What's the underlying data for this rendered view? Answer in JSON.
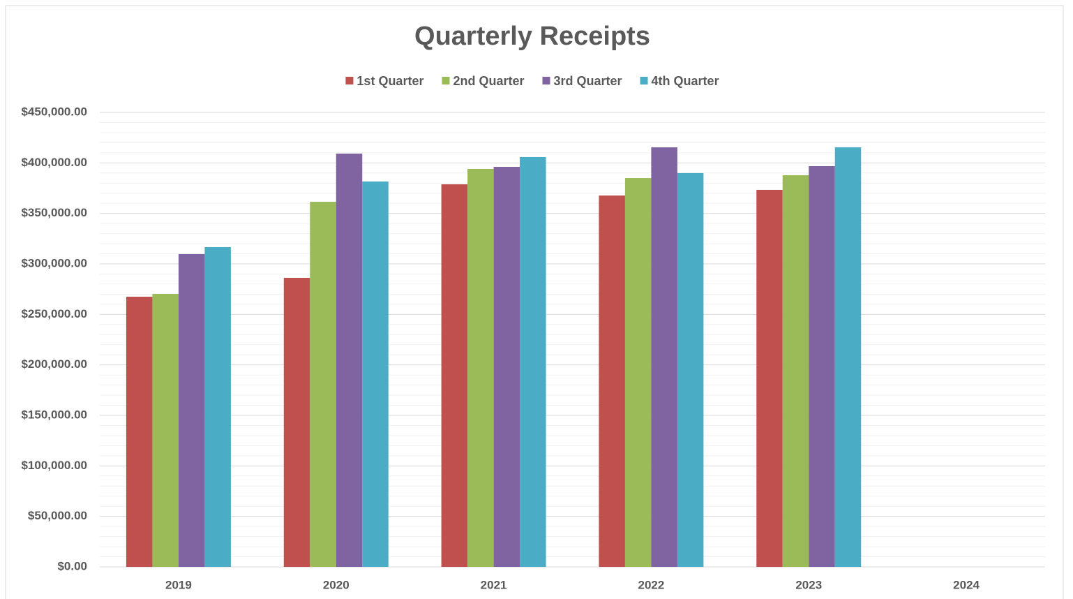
{
  "chart_data": {
    "type": "bar",
    "title": "Quarterly Receipts",
    "categories": [
      "2019",
      "2020",
      "2021",
      "2022",
      "2023",
      "2024"
    ],
    "series": [
      {
        "name": "1st Quarter",
        "color": "#c0504d",
        "values": [
          267500,
          286200,
          378800,
          367700,
          373300,
          null
        ]
      },
      {
        "name": "2nd Quarter",
        "color": "#9bbb59",
        "values": [
          270300,
          361500,
          394000,
          385000,
          387800,
          null
        ]
      },
      {
        "name": "3rd Quarter",
        "color": "#8064a2",
        "values": [
          309700,
          409200,
          396100,
          415400,
          396800,
          null
        ]
      },
      {
        "name": "4th Quarter",
        "color": "#4bacc6",
        "values": [
          316600,
          381600,
          405800,
          389900,
          415400,
          null
        ]
      }
    ],
    "ylim": [
      0,
      450000
    ],
    "yticks": [
      {
        "value": 0,
        "label": "$0.00"
      },
      {
        "value": 50000,
        "label": "$50,000.00"
      },
      {
        "value": 100000,
        "label": "$100,000.00"
      },
      {
        "value": 150000,
        "label": "$150,000.00"
      },
      {
        "value": 200000,
        "label": "$200,000.00"
      },
      {
        "value": 250000,
        "label": "$250,000.00"
      },
      {
        "value": 300000,
        "label": "$300,000.00"
      },
      {
        "value": 350000,
        "label": "$350,000.00"
      },
      {
        "value": 400000,
        "label": "$400,000.00"
      },
      {
        "value": 450000,
        "label": "$450,000.00"
      }
    ],
    "minor_yticks": [
      10000,
      20000,
      30000,
      40000,
      60000,
      70000,
      80000,
      90000,
      110000,
      120000,
      130000,
      140000,
      160000,
      170000,
      180000,
      190000,
      210000,
      220000,
      230000,
      240000,
      260000,
      270000,
      280000,
      290000,
      310000,
      320000,
      330000,
      340000,
      360000,
      370000,
      380000,
      390000,
      410000,
      420000,
      430000,
      440000
    ],
    "grid": true,
    "legend": "top"
  }
}
